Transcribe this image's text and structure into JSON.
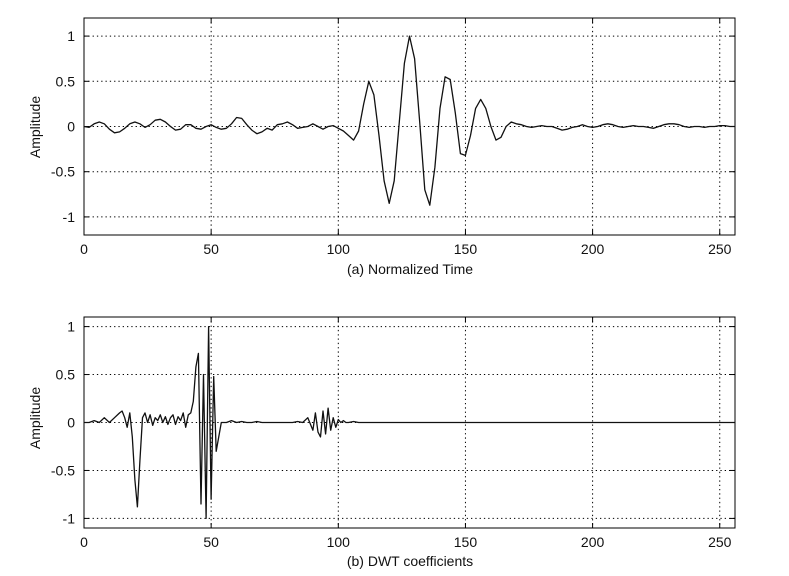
{
  "chart_data": [
    {
      "type": "line",
      "title": "",
      "xlabel": "(a) Normalized Time",
      "ylabel": "Amplitude",
      "xlim": [
        0,
        256
      ],
      "ylim": [
        -1.2,
        1.2
      ],
      "xticks": [
        0,
        50,
        100,
        150,
        200,
        250
      ],
      "yticks": [
        -1,
        -0.5,
        0,
        0.5,
        1
      ],
      "ytick_labels": [
        "-1",
        "-0.5",
        "0",
        "0.5",
        "1"
      ],
      "grid": true,
      "series": [
        {
          "x": [
            0,
            2,
            4,
            6,
            8,
            10,
            12,
            14,
            16,
            18,
            20,
            22,
            24,
            26,
            28,
            30,
            32,
            34,
            36,
            38,
            40,
            42,
            44,
            46,
            48,
            50,
            52,
            54,
            56,
            58,
            60,
            62,
            64,
            66,
            68,
            70,
            72,
            74,
            76,
            78,
            80,
            82,
            84,
            86,
            88,
            90,
            92,
            94,
            96,
            98,
            100,
            102,
            104,
            106,
            108,
            110,
            112,
            114,
            116,
            118,
            120,
            122,
            124,
            126,
            128,
            130,
            132,
            134,
            136,
            138,
            140,
            142,
            144,
            146,
            148,
            150,
            152,
            154,
            156,
            158,
            160,
            162,
            164,
            166,
            168,
            170,
            172,
            174,
            176,
            178,
            180,
            182,
            184,
            186,
            188,
            190,
            192,
            194,
            196,
            198,
            200,
            202,
            204,
            206,
            208,
            210,
            212,
            214,
            216,
            218,
            220,
            222,
            224,
            226,
            228,
            230,
            232,
            234,
            236,
            238,
            240,
            242,
            244,
            246,
            248,
            250,
            252,
            254,
            256
          ],
          "values": [
            0,
            -0.01,
            0.03,
            0.05,
            0.03,
            -0.03,
            -0.07,
            -0.06,
            -0.02,
            0.03,
            0.05,
            0.03,
            -0.01,
            0.02,
            0.07,
            0.08,
            0.05,
            0.0,
            -0.04,
            -0.03,
            0.02,
            0.02,
            -0.02,
            -0.03,
            0.0,
            0.02,
            -0.01,
            -0.03,
            -0.02,
            0.03,
            0.1,
            0.09,
            0.02,
            -0.04,
            -0.08,
            -0.06,
            -0.02,
            -0.04,
            0.02,
            0.03,
            0.05,
            0.02,
            -0.02,
            -0.01,
            0.0,
            0.03,
            0.0,
            -0.03,
            0.0,
            0.01,
            -0.02,
            -0.05,
            -0.1,
            -0.15,
            -0.05,
            0.25,
            0.5,
            0.35,
            -0.1,
            -0.6,
            -0.85,
            -0.6,
            0.05,
            0.7,
            1.0,
            0.75,
            0.05,
            -0.7,
            -0.87,
            -0.45,
            0.2,
            0.55,
            0.52,
            0.15,
            -0.3,
            -0.32,
            -0.1,
            0.2,
            0.3,
            0.2,
            0.0,
            -0.15,
            -0.12,
            0.0,
            0.05,
            0.03,
            0.02,
            0.0,
            -0.01,
            0.0,
            0.01,
            0.0,
            0.0,
            -0.02,
            -0.04,
            -0.03,
            -0.01,
            0.0,
            0.02,
            0.0,
            -0.01,
            0.0,
            0.02,
            0.03,
            0.02,
            0.0,
            -0.01,
            0.0,
            0.01,
            0.0,
            0.0,
            -0.01,
            -0.02,
            0.0,
            0.02,
            0.03,
            0.03,
            0.02,
            0.0,
            -0.01,
            0.0,
            0.0,
            -0.01,
            0.0,
            0.0,
            0.01,
            0.01,
            0.0,
            0.0
          ]
        }
      ]
    },
    {
      "type": "line",
      "title": "",
      "xlabel": "(b) DWT coefficients",
      "ylabel": "Amplitude",
      "xlim": [
        0,
        256
      ],
      "ylim": [
        -1.1,
        1.1
      ],
      "xticks": [
        0,
        50,
        100,
        150,
        200,
        250
      ],
      "yticks": [
        -1,
        -0.5,
        0,
        0.5,
        1
      ],
      "ytick_labels": [
        "-1",
        "-0.5",
        "0",
        "0.5",
        "1"
      ],
      "grid": true,
      "series": [
        {
          "x": [
            0,
            2,
            4,
            6,
            8,
            10,
            12,
            14,
            15,
            16,
            17,
            18,
            19,
            20,
            21,
            22,
            23,
            24,
            25,
            26,
            27,
            28,
            29,
            30,
            31,
            32,
            33,
            34,
            35,
            36,
            37,
            38,
            39,
            40,
            41,
            42,
            43,
            44,
            45,
            46,
            47,
            48,
            49,
            50,
            51,
            52,
            54,
            56,
            58,
            60,
            62,
            64,
            66,
            68,
            70,
            72,
            74,
            76,
            78,
            80,
            82,
            84,
            86,
            88,
            90,
            91,
            92,
            93,
            94,
            95,
            96,
            97,
            98,
            99,
            100,
            101,
            102,
            103,
            104,
            106,
            108,
            110,
            115,
            120,
            125,
            130,
            140,
            150,
            160,
            170,
            180,
            190,
            200,
            210,
            220,
            230,
            240,
            250,
            256
          ],
          "values": [
            0,
            0.0,
            0.02,
            0.0,
            0.05,
            0.0,
            0.05,
            0.1,
            0.12,
            0.05,
            -0.05,
            0.1,
            -0.15,
            -0.6,
            -0.88,
            -0.4,
            0.05,
            0.1,
            0.0,
            0.08,
            -0.03,
            0.05,
            0.02,
            0.08,
            0.0,
            0.06,
            -0.02,
            0.05,
            0.08,
            -0.02,
            0.06,
            0.02,
            0.1,
            -0.05,
            0.08,
            0.1,
            0.22,
            0.58,
            0.72,
            -0.85,
            0.5,
            -1.0,
            1.0,
            -0.8,
            0.48,
            -0.3,
            0.0,
            0.0,
            0.02,
            0.0,
            0.01,
            0.0,
            0.0,
            0.01,
            0.0,
            0.0,
            0.0,
            0.0,
            0.0,
            0.0,
            0.0,
            0.01,
            0.0,
            0.05,
            -0.08,
            0.1,
            -0.1,
            -0.15,
            0.12,
            -0.12,
            0.15,
            -0.08,
            0.05,
            -0.05,
            0.03,
            0.0,
            0.02,
            0.0,
            0.0,
            0.01,
            0.0,
            0.0,
            0.0,
            0.0,
            0.0,
            0.0,
            0.0,
            0.0,
            0.0,
            0.0,
            0.0,
            0.0,
            0.0,
            0.0,
            0.0,
            0.0,
            0.0,
            0.0,
            0.0
          ]
        }
      ]
    }
  ]
}
